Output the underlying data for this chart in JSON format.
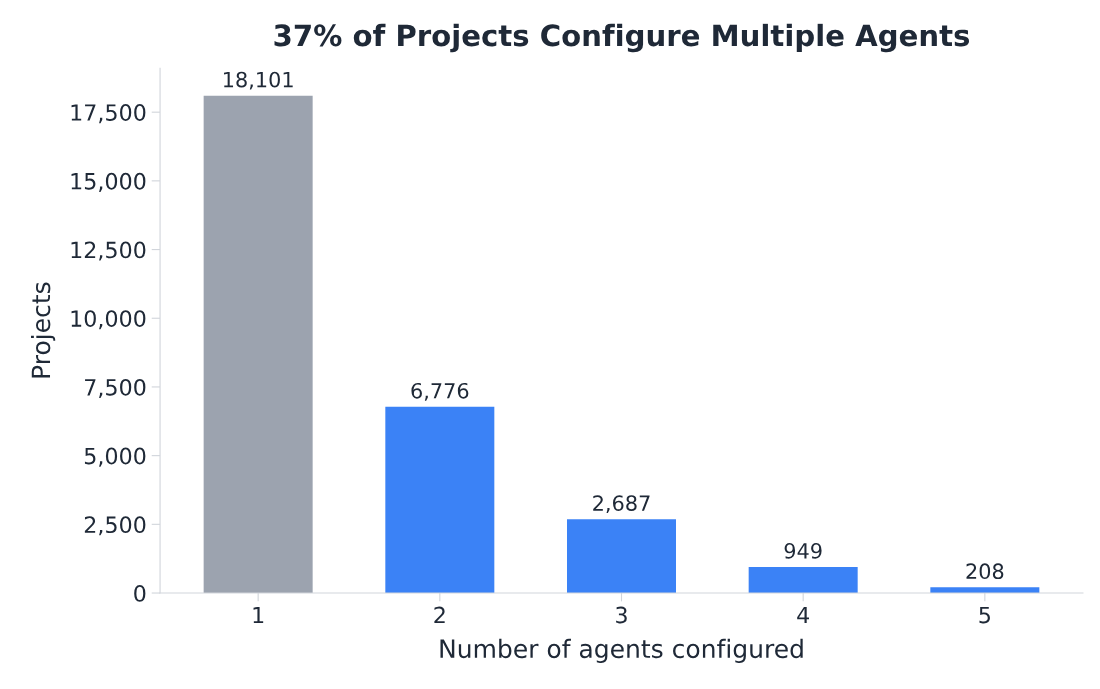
{
  "chart_data": {
    "type": "bar",
    "title": "37% of Projects Configure Multiple Agents",
    "xlabel": "Number of agents configured",
    "ylabel": "Projects",
    "categories": [
      "1",
      "2",
      "3",
      "4",
      "5"
    ],
    "values": [
      18101,
      6776,
      2687,
      949,
      208
    ],
    "colors": [
      "#9ca3af",
      "#3b82f6",
      "#3b82f6",
      "#3b82f6",
      "#3b82f6"
    ],
    "value_labels": [
      "18,101",
      "6,776",
      "2,687",
      "949",
      "208"
    ],
    "ylim": [
      0,
      19100
    ],
    "yticks": [
      {
        "value": 0,
        "label": "0"
      },
      {
        "value": 2500,
        "label": "2,500"
      },
      {
        "value": 5000,
        "label": "5,000"
      },
      {
        "value": 7500,
        "label": "7,500"
      },
      {
        "value": 10000,
        "label": "10,000"
      },
      {
        "value": 12500,
        "label": "12,500"
      },
      {
        "value": 15000,
        "label": "15,000"
      },
      {
        "value": 17500,
        "label": "17,500"
      }
    ],
    "grid": false
  }
}
